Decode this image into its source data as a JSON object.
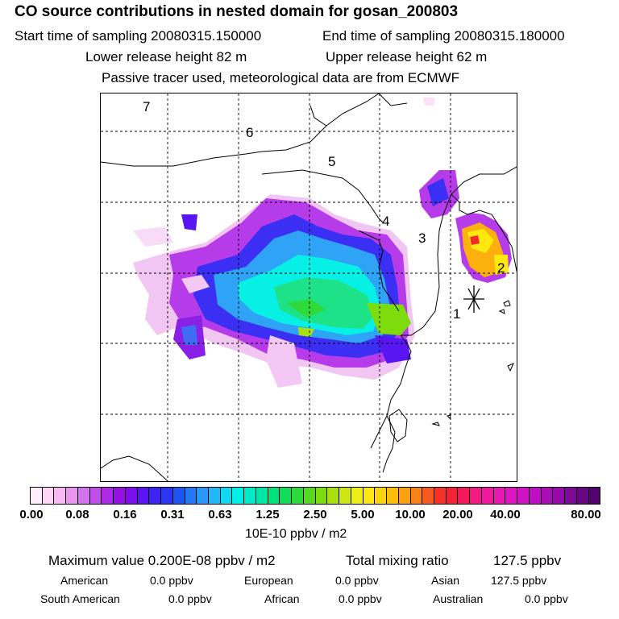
{
  "header": {
    "title": "CO  source contributions in nested domain for gosan_200803",
    "start_label": "Start time of sampling 20080315.150000",
    "end_label": "End time of sampling 20080315.180000",
    "lower_label": "Lower release height   82 m",
    "upper_label": "Upper release height   62 m",
    "tracer_note": "Passive tracer used, meteorological data are from ECMWF"
  },
  "map": {
    "region_labels": [
      "1",
      "2",
      "3",
      "4",
      "5",
      "6",
      "7"
    ],
    "receptor_marker": "receptor-star-icon"
  },
  "colorbar": {
    "ticks": [
      "0.00",
      "0.08",
      "0.16",
      "0.31",
      "0.63",
      "1.25",
      "2.50",
      "5.00",
      "10.00",
      "20.00",
      "40.00",
      "80.00"
    ],
    "colors": [
      "#ffeefc",
      "#ffd6f7",
      "#f7b8f3",
      "#e996f0",
      "#d472ee",
      "#c24ee9",
      "#ad29e6",
      "#9410e3",
      "#7a0fea",
      "#5a16f2",
      "#3d22f5",
      "#2b35f3",
      "#1e55f0",
      "#2478f5",
      "#2a98f7",
      "#21b8f8",
      "#10d8f4",
      "#00f0e8",
      "#00eac8",
      "#00e6a6",
      "#00e280",
      "#10dc5a",
      "#2ed93a",
      "#55d81f",
      "#7edb0c",
      "#a8e010",
      "#cfe612",
      "#f0ee18",
      "#fee810",
      "#fdd40c",
      "#fcbd0c",
      "#fba00f",
      "#f9801a",
      "#f75a20",
      "#f63226",
      "#f42033",
      "#f31a5a",
      "#f11a80",
      "#ee1a9e",
      "#e818b4",
      "#de15c0",
      "#d012c6",
      "#be10c2",
      "#aa0db8",
      "#950aa8",
      "#7f0896",
      "#690683",
      "#540470"
    ],
    "units": "10E-10 ppbv / m2"
  },
  "summary": {
    "max_label": "Maximum value  0.200E-08 ppbv / m2",
    "total_label": "Total mixing ratio",
    "total_value": "127.5 ppbv",
    "regions": [
      {
        "name": "American",
        "value": "0.0 ppbv"
      },
      {
        "name": "European",
        "value": "0.0 ppbv"
      },
      {
        "name": "Asian",
        "value": "127.5 ppbv"
      },
      {
        "name": "South American",
        "value": "0.0 ppbv"
      },
      {
        "name": "African",
        "value": "0.0 ppbv"
      },
      {
        "name": "Australian",
        "value": "0.0 ppbv"
      }
    ]
  }
}
